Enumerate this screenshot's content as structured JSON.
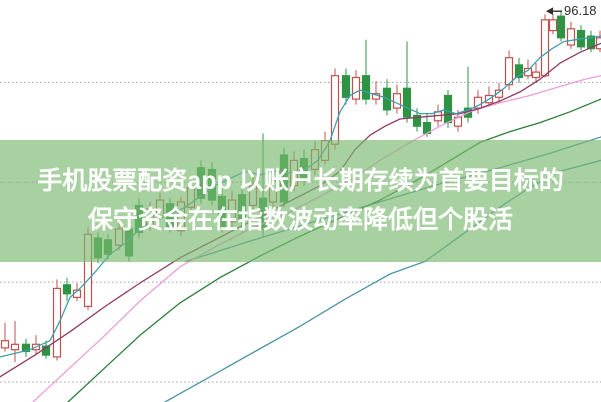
{
  "page": {
    "background_color": "#ffffff"
  },
  "overlay": {
    "line1": "手机股票配资app 以账户长期存续为首要目标的",
    "line2": "保守资金在在指数波动率降低但个股活",
    "background_color": "rgba(123,185,112,0.66)",
    "text_color": "#ffffff"
  },
  "chart_data": {
    "type": "candlestick",
    "title": "",
    "xlabel": "",
    "ylabel": "",
    "axes_visible": false,
    "x_unit": "px",
    "xlim": [
      0,
      601
    ],
    "ylim": [
      74.5,
      96.8
    ],
    "grid": "horizontal-dotted",
    "gridline_values": [
      92.23,
      86.69,
      81.15,
      75.61
    ],
    "gridline_color": "#a0a0a0",
    "up_color": "#c0504d",
    "down_color": "#2e9444",
    "annotation": {
      "label": "96.18",
      "price": 96.18,
      "arrow_tip_x": 546,
      "arrow_end_x": 562,
      "color": "#2f2f2f"
    },
    "candles": [
      {
        "x": 5,
        "dir": "up",
        "o": 77.5,
        "h": 78.9,
        "l": 77.3,
        "c": 77.9
      },
      {
        "x": 15,
        "dir": "up",
        "o": 77.4,
        "h": 79.0,
        "l": 76.7,
        "c": 77.7
      },
      {
        "x": 26,
        "dir": "down",
        "o": 77.7,
        "h": 78.0,
        "l": 77.0,
        "c": 77.3
      },
      {
        "x": 36,
        "dir": "up",
        "o": 77.4,
        "h": 78.2,
        "l": 77.1,
        "c": 77.7
      },
      {
        "x": 46,
        "dir": "down",
        "o": 77.6,
        "h": 77.9,
        "l": 76.9,
        "c": 77.1
      },
      {
        "x": 57,
        "dir": "up",
        "o": 77.0,
        "h": 81.3,
        "l": 76.8,
        "c": 80.8
      },
      {
        "x": 67,
        "dir": "down",
        "o": 81.0,
        "h": 81.4,
        "l": 80.1,
        "c": 80.5
      },
      {
        "x": 77,
        "dir": "up",
        "o": 80.3,
        "h": 81.1,
        "l": 80.1,
        "c": 80.7
      },
      {
        "x": 88,
        "dir": "up",
        "o": 79.8,
        "h": 84.2,
        "l": 79.6,
        "c": 83.8
      },
      {
        "x": 98,
        "dir": "down",
        "o": 83.6,
        "h": 83.9,
        "l": 82.2,
        "c": 82.5
      },
      {
        "x": 108,
        "dir": "down",
        "o": 83.5,
        "h": 83.8,
        "l": 82.4,
        "c": 82.7
      },
      {
        "x": 119,
        "dir": "up",
        "o": 83.2,
        "h": 84.5,
        "l": 82.9,
        "c": 84.1
      },
      {
        "x": 129,
        "dir": "down",
        "o": 84.1,
        "h": 84.3,
        "l": 82.3,
        "c": 82.6
      },
      {
        "x": 139,
        "dir": "down",
        "o": 85.4,
        "h": 85.8,
        "l": 83.6,
        "c": 83.9
      },
      {
        "x": 150,
        "dir": "up",
        "o": 84.3,
        "h": 85.6,
        "l": 84.0,
        "c": 85.2
      },
      {
        "x": 160,
        "dir": "up",
        "o": 84.8,
        "h": 86.1,
        "l": 84.6,
        "c": 85.7
      },
      {
        "x": 170,
        "dir": "down",
        "o": 85.5,
        "h": 85.8,
        "l": 83.9,
        "c": 84.2
      },
      {
        "x": 181,
        "dir": "up",
        "o": 84.0,
        "h": 85.9,
        "l": 83.7,
        "c": 85.6
      },
      {
        "x": 191,
        "dir": "up",
        "o": 85.3,
        "h": 86.8,
        "l": 85.0,
        "c": 86.4
      },
      {
        "x": 201,
        "dir": "down",
        "o": 87.5,
        "h": 87.9,
        "l": 85.5,
        "c": 85.8
      },
      {
        "x": 212,
        "dir": "down",
        "o": 87.4,
        "h": 87.8,
        "l": 85.4,
        "c": 85.7
      },
      {
        "x": 222,
        "dir": "down",
        "o": 85.9,
        "h": 86.4,
        "l": 83.9,
        "c": 84.2
      },
      {
        "x": 232,
        "dir": "up",
        "o": 84.5,
        "h": 86.2,
        "l": 84.2,
        "c": 85.7
      },
      {
        "x": 242,
        "dir": "down",
        "o": 86.0,
        "h": 86.4,
        "l": 83.8,
        "c": 84.6
      },
      {
        "x": 253,
        "dir": "up",
        "o": 85.4,
        "h": 87.1,
        "l": 85.2,
        "c": 86.5
      },
      {
        "x": 263,
        "dir": "down",
        "o": 85.8,
        "h": 89.4,
        "l": 83.7,
        "c": 84.1
      },
      {
        "x": 273,
        "dir": "up",
        "o": 85.6,
        "h": 87.3,
        "l": 85.3,
        "c": 86.8
      },
      {
        "x": 284,
        "dir": "down",
        "o": 88.2,
        "h": 88.6,
        "l": 85.3,
        "c": 85.6
      },
      {
        "x": 294,
        "dir": "up",
        "o": 86.5,
        "h": 88.4,
        "l": 86.2,
        "c": 87.9
      },
      {
        "x": 304,
        "dir": "down",
        "o": 88.0,
        "h": 88.5,
        "l": 86.5,
        "c": 86.8
      },
      {
        "x": 315,
        "dir": "up",
        "o": 87.4,
        "h": 89.0,
        "l": 87.1,
        "c": 88.5
      },
      {
        "x": 325,
        "dir": "up",
        "o": 87.9,
        "h": 89.5,
        "l": 87.7,
        "c": 89.0
      },
      {
        "x": 335,
        "dir": "up",
        "o": 88.8,
        "h": 93.0,
        "l": 88.5,
        "c": 92.6
      },
      {
        "x": 346,
        "dir": "down",
        "o": 92.6,
        "h": 93.0,
        "l": 91.0,
        "c": 91.4
      },
      {
        "x": 356,
        "dir": "up",
        "o": 91.3,
        "h": 92.9,
        "l": 91.0,
        "c": 92.5
      },
      {
        "x": 366,
        "dir": "down",
        "o": 92.6,
        "h": 94.6,
        "l": 91.0,
        "c": 91.3
      },
      {
        "x": 376,
        "dir": "up",
        "o": 91.3,
        "h": 92.3,
        "l": 91.0,
        "c": 91.6
      },
      {
        "x": 387,
        "dir": "down",
        "o": 91.9,
        "h": 92.4,
        "l": 90.4,
        "c": 90.7
      },
      {
        "x": 397,
        "dir": "up",
        "o": 90.8,
        "h": 92.1,
        "l": 90.5,
        "c": 91.6
      },
      {
        "x": 407,
        "dir": "down",
        "o": 91.9,
        "h": 94.5,
        "l": 90.0,
        "c": 90.3
      },
      {
        "x": 417,
        "dir": "down",
        "o": 90.4,
        "h": 90.8,
        "l": 89.5,
        "c": 89.8
      },
      {
        "x": 427,
        "dir": "down",
        "o": 90.0,
        "h": 90.5,
        "l": 89.2,
        "c": 89.4
      },
      {
        "x": 438,
        "dir": "up",
        "o": 90.1,
        "h": 91.0,
        "l": 89.8,
        "c": 90.6
      },
      {
        "x": 448,
        "dir": "down",
        "o": 91.5,
        "h": 91.8,
        "l": 89.7,
        "c": 90.0
      },
      {
        "x": 458,
        "dir": "up",
        "o": 89.8,
        "h": 90.7,
        "l": 89.5,
        "c": 90.3
      },
      {
        "x": 468,
        "dir": "down",
        "o": 90.8,
        "h": 93.1,
        "l": 90.0,
        "c": 90.3
      },
      {
        "x": 478,
        "dir": "up",
        "o": 90.8,
        "h": 91.8,
        "l": 90.5,
        "c": 91.4
      },
      {
        "x": 489,
        "dir": "up",
        "o": 91.1,
        "h": 92.0,
        "l": 90.9,
        "c": 91.5
      },
      {
        "x": 499,
        "dir": "up",
        "o": 91.4,
        "h": 92.2,
        "l": 91.1,
        "c": 91.8
      },
      {
        "x": 509,
        "dir": "up",
        "o": 92.1,
        "h": 94.0,
        "l": 91.8,
        "c": 93.6
      },
      {
        "x": 519,
        "dir": "down",
        "o": 93.2,
        "h": 93.6,
        "l": 92.2,
        "c": 92.5
      },
      {
        "x": 528,
        "dir": "up",
        "o": 92.6,
        "h": 93.5,
        "l": 92.4,
        "c": 93.0
      },
      {
        "x": 536,
        "dir": "up",
        "o": 92.5,
        "h": 93.3,
        "l": 92.2,
        "c": 92.8
      },
      {
        "x": 545,
        "dir": "up",
        "o": 92.6,
        "h": 96.0,
        "l": 92.5,
        "c": 95.7
      },
      {
        "x": 553,
        "dir": "up",
        "o": 95.1,
        "h": 96.0,
        "l": 94.9,
        "c": 95.7
      },
      {
        "x": 561,
        "dir": "down",
        "o": 95.9,
        "h": 96.18,
        "l": 94.5,
        "c": 94.7
      },
      {
        "x": 571,
        "dir": "up",
        "o": 94.3,
        "h": 95.6,
        "l": 94.1,
        "c": 95.2
      },
      {
        "x": 581,
        "dir": "down",
        "o": 95.1,
        "h": 95.4,
        "l": 94.0,
        "c": 94.2
      },
      {
        "x": 591,
        "dir": "down",
        "o": 94.8,
        "h": 95.1,
        "l": 93.9,
        "c": 94.1
      },
      {
        "x": 600,
        "dir": "up",
        "o": 94.1,
        "h": 95.1,
        "l": 93.9,
        "c": 94.7
      }
    ],
    "series": [
      {
        "name": "slow-steel-upper",
        "color": "#4e93a5",
        "points": [
          [
            186,
            82.3
          ],
          [
            260,
            83.6
          ],
          [
            320,
            84.6
          ],
          [
            380,
            85.6
          ],
          [
            440,
            86.6
          ],
          [
            500,
            87.5
          ],
          [
            550,
            88.3
          ],
          [
            601,
            89.2
          ]
        ]
      },
      {
        "name": "slow-steel-lower",
        "color": "#4e93a5",
        "points": [
          [
            165,
            74.5
          ],
          [
            210,
            75.9
          ],
          [
            255,
            77.3
          ],
          [
            300,
            78.7
          ],
          [
            345,
            80.2
          ],
          [
            390,
            81.6
          ],
          [
            425,
            82.3
          ],
          [
            455,
            83.5
          ],
          [
            480,
            84.5
          ],
          [
            505,
            85.5
          ],
          [
            530,
            86.4
          ],
          [
            560,
            87.3
          ],
          [
            601,
            87.9
          ]
        ]
      },
      {
        "name": "ma-dark-green",
        "color": "#2e7d3a",
        "points": [
          [
            68,
            74.5
          ],
          [
            105,
            76.4
          ],
          [
            140,
            78.2
          ],
          [
            180,
            80.0
          ],
          [
            220,
            81.4
          ],
          [
            260,
            82.6
          ],
          [
            300,
            83.7
          ],
          [
            340,
            84.7
          ],
          [
            380,
            85.7
          ],
          [
            420,
            86.9
          ],
          [
            450,
            87.9
          ],
          [
            480,
            88.9
          ],
          [
            510,
            89.5
          ],
          [
            540,
            90.0
          ],
          [
            570,
            90.6
          ],
          [
            601,
            91.3
          ]
        ]
      },
      {
        "name": "ma-pink",
        "color": "#ec9ddb",
        "points": [
          [
            33,
            74.5
          ],
          [
            70,
            76.4
          ],
          [
            105,
            78.2
          ],
          [
            140,
            80.1
          ],
          [
            180,
            82.0
          ],
          [
            215,
            83.1
          ],
          [
            250,
            84.1
          ],
          [
            285,
            84.9
          ],
          [
            320,
            85.9
          ],
          [
            350,
            86.8
          ],
          [
            380,
            87.9
          ],
          [
            410,
            88.9
          ],
          [
            440,
            89.8
          ],
          [
            470,
            90.6
          ],
          [
            500,
            91.1
          ],
          [
            530,
            91.5
          ],
          [
            560,
            92.0
          ],
          [
            585,
            92.4
          ],
          [
            601,
            92.6
          ]
        ]
      },
      {
        "name": "ma-maroon",
        "color": "#8e3a60",
        "points": [
          [
            0,
            75.9
          ],
          [
            35,
            77.1
          ],
          [
            70,
            78.4
          ],
          [
            105,
            79.8
          ],
          [
            140,
            81.1
          ],
          [
            180,
            82.5
          ],
          [
            215,
            83.5
          ],
          [
            250,
            84.5
          ],
          [
            285,
            85.5
          ],
          [
            320,
            86.5
          ],
          [
            340,
            87.3
          ],
          [
            355,
            88.5
          ],
          [
            370,
            89.3
          ],
          [
            385,
            89.8
          ],
          [
            400,
            90.2
          ],
          [
            420,
            90.3
          ],
          [
            440,
            90.4
          ],
          [
            460,
            90.5
          ],
          [
            480,
            90.8
          ],
          [
            500,
            91.2
          ],
          [
            520,
            91.7
          ],
          [
            540,
            92.4
          ],
          [
            560,
            93.3
          ],
          [
            580,
            93.9
          ],
          [
            601,
            94.4
          ]
        ]
      },
      {
        "name": "ma-teal",
        "color": "#3f9fae",
        "points": [
          [
            0,
            77.0
          ],
          [
            30,
            77.4
          ],
          [
            50,
            77.9
          ],
          [
            60,
            79.0
          ],
          [
            70,
            80.3
          ],
          [
            80,
            80.8
          ],
          [
            95,
            81.7
          ],
          [
            110,
            82.7
          ],
          [
            125,
            83.3
          ],
          [
            140,
            84.1
          ],
          [
            155,
            84.6
          ],
          [
            170,
            84.9
          ],
          [
            185,
            85.3
          ],
          [
            200,
            85.9
          ],
          [
            215,
            86.5
          ],
          [
            230,
            86.9
          ],
          [
            245,
            87.3
          ],
          [
            260,
            87.1
          ],
          [
            275,
            87.3
          ],
          [
            290,
            87.2
          ],
          [
            305,
            87.4
          ],
          [
            318,
            87.9
          ],
          [
            330,
            89.0
          ],
          [
            340,
            90.6
          ],
          [
            350,
            91.5
          ],
          [
            360,
            91.8
          ],
          [
            372,
            91.6
          ],
          [
            384,
            91.4
          ],
          [
            396,
            91.1
          ],
          [
            408,
            90.8
          ],
          [
            420,
            90.5
          ],
          [
            432,
            90.5
          ],
          [
            444,
            90.7
          ],
          [
            456,
            90.5
          ],
          [
            468,
            90.7
          ],
          [
            480,
            91.0
          ],
          [
            492,
            91.4
          ],
          [
            504,
            91.9
          ],
          [
            516,
            92.5
          ],
          [
            528,
            92.9
          ],
          [
            540,
            93.6
          ],
          [
            552,
            94.1
          ],
          [
            564,
            94.5
          ],
          [
            576,
            94.6
          ],
          [
            588,
            94.7
          ],
          [
            601,
            94.8
          ]
        ]
      }
    ]
  }
}
